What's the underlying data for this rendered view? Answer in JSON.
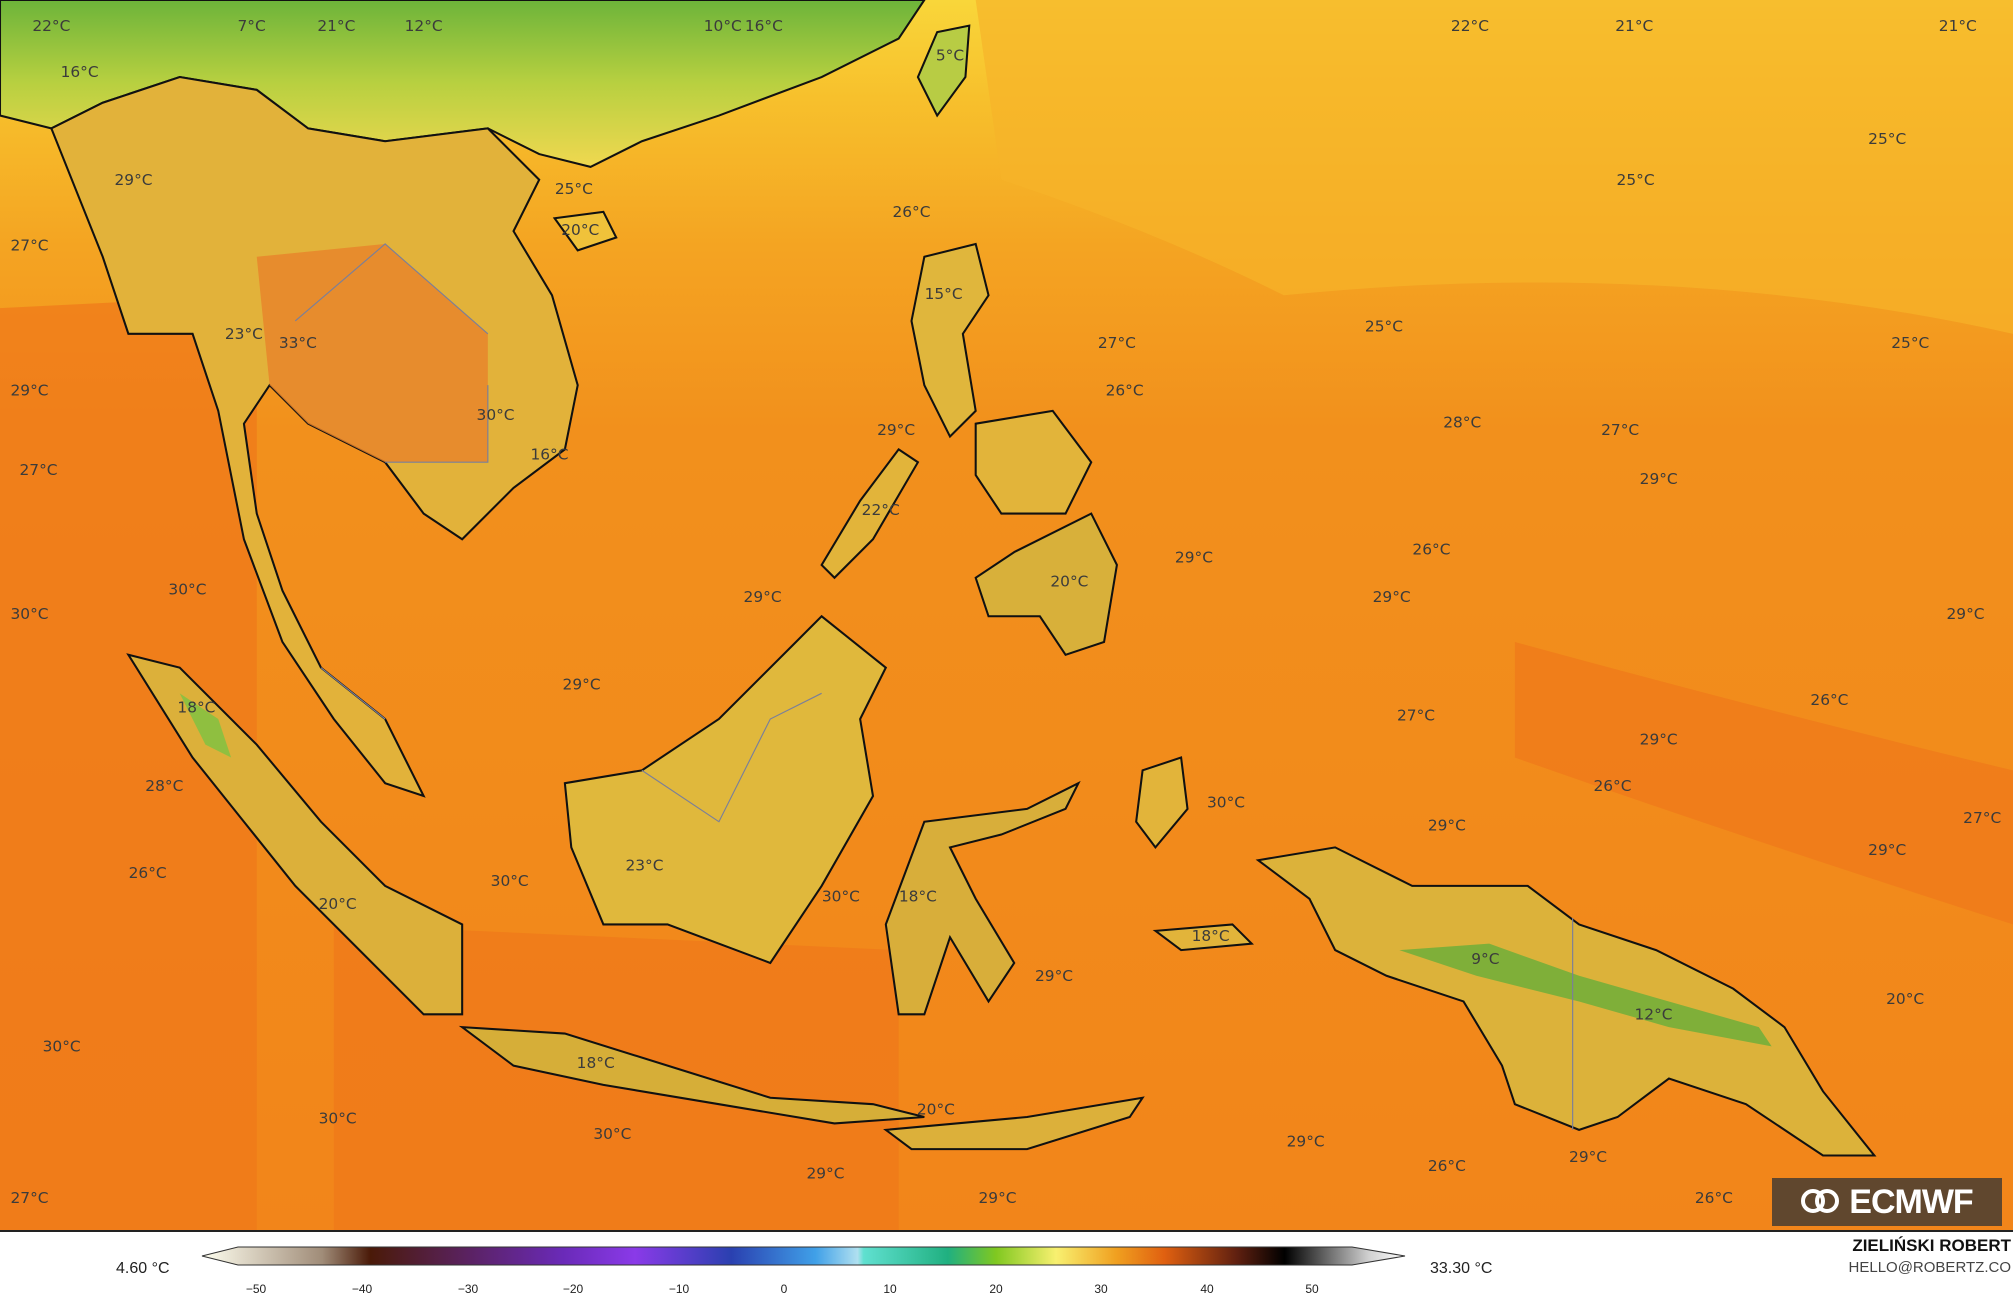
{
  "map": {
    "colors": {
      "ocean_warm": "#f2801a",
      "ocean": "#f39c22",
      "north_yellow": "#f7c42e",
      "land": "#dcb43a",
      "highland": "#6fae3a",
      "border": "#7a7f9a",
      "label": "#3b3b3b"
    },
    "labels": [
      "22°C",
      "7°C",
      "21°C",
      "12°C",
      "10°C",
      "16°C",
      "5°C",
      "22°C",
      "21°C",
      "21°C",
      "16°C",
      "29°C",
      "25°C",
      "20°C",
      "26°C",
      "25°C",
      "25°C",
      "27°C",
      "15°C",
      "27°C",
      "25°C",
      "25°C",
      "23°C",
      "33°C",
      "29°C",
      "26°C",
      "30°C",
      "28°C",
      "27°C",
      "29°C",
      "16°C",
      "27°C",
      "29°C",
      "22°C",
      "29°C",
      "26°C",
      "20°C",
      "30°C",
      "29°C",
      "29°C",
      "30°C",
      "29°C",
      "29°C",
      "26°C",
      "18°C",
      "27°C",
      "29°C",
      "28°C",
      "26°C",
      "30°C",
      "27°C",
      "29°C",
      "29°C",
      "26°C",
      "30°C",
      "23°C",
      "30°C",
      "18°C",
      "20°C",
      "18°C",
      "9°C",
      "29°C",
      "20°C",
      "12°C",
      "30°C",
      "18°C",
      "20°C",
      "30°C",
      "30°C",
      "29°C",
      "29°C",
      "26°C",
      "29°C",
      "27°C",
      "29°C",
      "26°C"
    ]
  },
  "logo": {
    "text": "ECMWF"
  },
  "legend": {
    "min_value": "4.60 °C",
    "max_value": "33.30 °C",
    "ticks": [
      "−50",
      "−40",
      "−30",
      "−20",
      "−10",
      "0",
      "10",
      "20",
      "30",
      "40",
      "50"
    ]
  },
  "credit": {
    "name": "ZIELIŃSKI ROBERT",
    "email": "HELLO@ROBERTZ.CO"
  }
}
